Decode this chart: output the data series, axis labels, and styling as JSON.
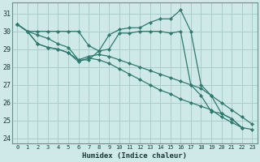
{
  "background_color": "#cfe8e8",
  "grid_color": "#aacccc",
  "line_color": "#2d7a6e",
  "marker_color": "#2d7a6e",
  "xlabel": "Humidex (Indice chaleur)",
  "xlim": [
    -0.5,
    23.5
  ],
  "ylim": [
    23.7,
    31.6
  ],
  "yticks": [
    24,
    25,
    26,
    27,
    28,
    29,
    30,
    31
  ],
  "xticks": [
    0,
    1,
    2,
    3,
    4,
    5,
    6,
    7,
    8,
    9,
    10,
    11,
    12,
    13,
    14,
    15,
    16,
    17,
    18,
    19,
    20,
    21,
    22,
    23
  ],
  "series": [
    {
      "x": [
        0,
        1,
        2,
        3,
        4,
        5,
        6,
        7,
        8,
        9,
        10,
        11,
        12,
        13,
        14,
        15,
        16,
        17,
        18,
        19,
        20,
        21,
        22
      ],
      "y": [
        30.4,
        30.0,
        29.8,
        29.6,
        29.3,
        29.1,
        28.4,
        28.4,
        28.9,
        29.8,
        30.1,
        30.2,
        30.2,
        30.5,
        30.7,
        30.7,
        31.2,
        30.0,
        27.0,
        26.4,
        25.4,
        25.1,
        24.6
      ]
    },
    {
      "x": [
        0,
        1,
        2,
        3,
        4,
        5,
        6,
        7,
        8,
        9,
        10,
        11,
        12,
        13,
        14,
        15,
        16,
        17,
        18,
        19,
        20,
        21,
        22
      ],
      "y": [
        30.4,
        30.0,
        30.0,
        30.0,
        30.0,
        30.0,
        30.0,
        29.2,
        28.9,
        29.0,
        29.9,
        29.9,
        30.0,
        30.0,
        30.0,
        29.9,
        30.0,
        27.0,
        26.4,
        25.5,
        25.4,
        25.1,
        24.6
      ]
    },
    {
      "x": [
        0,
        1,
        2,
        3,
        4,
        5,
        6,
        7,
        8,
        9,
        10,
        11,
        12,
        13,
        14,
        15,
        16,
        17,
        18,
        19,
        20,
        21,
        22,
        23
      ],
      "y": [
        30.4,
        30.0,
        29.3,
        29.1,
        29.0,
        28.8,
        28.4,
        28.6,
        28.7,
        28.6,
        28.4,
        28.2,
        28.0,
        27.8,
        27.6,
        27.4,
        27.2,
        27.0,
        26.8,
        26.4,
        26.0,
        25.6,
        25.2,
        24.8
      ]
    },
    {
      "x": [
        0,
        1,
        2,
        3,
        4,
        5,
        6,
        7,
        8,
        9,
        10,
        11,
        12,
        13,
        14,
        15,
        16,
        17,
        18,
        19,
        20,
        21,
        22,
        23
      ],
      "y": [
        30.4,
        30.0,
        29.3,
        29.1,
        29.0,
        28.8,
        28.3,
        28.5,
        28.4,
        28.2,
        27.9,
        27.6,
        27.3,
        27.0,
        26.7,
        26.5,
        26.2,
        26.0,
        25.8,
        25.6,
        25.2,
        24.9,
        24.6,
        24.5
      ]
    }
  ]
}
